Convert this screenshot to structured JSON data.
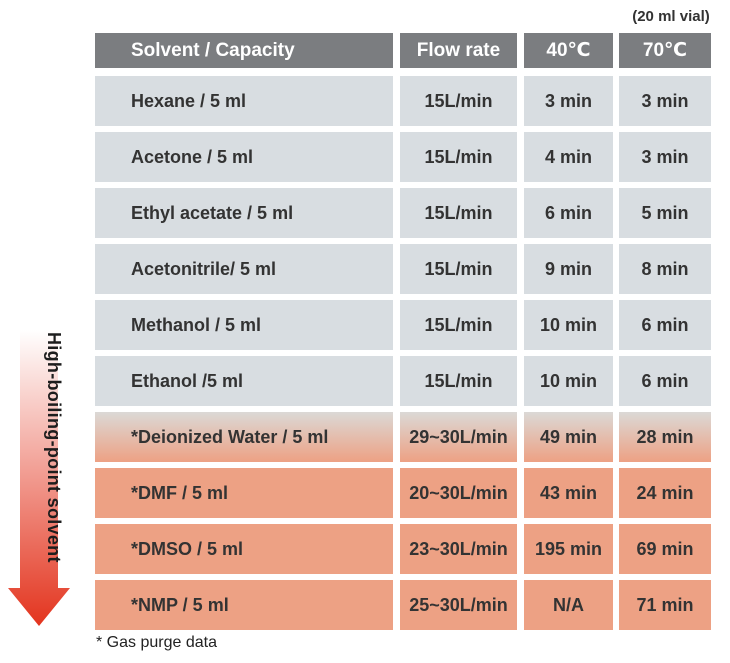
{
  "vial_note": "(20 ml vial)",
  "header": {
    "solvent": "Solvent / Capacity",
    "flow": "Flow rate",
    "t40": "40℃",
    "t70": "70℃"
  },
  "rows": [
    {
      "solvent": "Hexane /  5 ml",
      "flow": "15L/min",
      "t40": "3 min",
      "t70": "3 min",
      "tone": "grey"
    },
    {
      "solvent": "Acetone / 5 ml",
      "flow": "15L/min",
      "t40": "4 min",
      "t70": "3 min",
      "tone": "grey"
    },
    {
      "solvent": "Ethyl acetate / 5 ml",
      "flow": "15L/min",
      "t40": "6 min",
      "t70": "5 min",
      "tone": "grey"
    },
    {
      "solvent": "Acetonitrile/ 5 ml",
      "flow": "15L/min",
      "t40": "9 min",
      "t70": "8 min",
      "tone": "grey"
    },
    {
      "solvent": "Methanol / 5 ml",
      "flow": "15L/min",
      "t40": "10 min",
      "t70": "6 min",
      "tone": "grey"
    },
    {
      "solvent": "Ethanol  /5 ml",
      "flow": "15L/min",
      "t40": "10 min",
      "t70": "6 min",
      "tone": "grey"
    },
    {
      "solvent": "*Deionized Water / 5 ml",
      "flow": "29~30L/min",
      "t40": "49 min",
      "t70": "28 min",
      "tone": "fade"
    },
    {
      "solvent": "*DMF / 5 ml",
      "flow": "20~30L/min",
      "t40": "43 min",
      "t70": "24 min",
      "tone": "peach"
    },
    {
      "solvent": "*DMSO / 5 ml",
      "flow": "23~30L/min",
      "t40": "195 min",
      "t70": "69 min",
      "tone": "peach"
    },
    {
      "solvent": "*NMP / 5 ml",
      "flow": "25~30L/min",
      "t40": "N/A",
      "t70": "71 min",
      "tone": "peach"
    }
  ],
  "side_label": "High-boiling-point solvent",
  "side_arrow_icon": "down-arrow-icon",
  "colors": {
    "header_bg": "#7b7d80",
    "grey_row": "#d8dde1",
    "peach_row": "#eda184",
    "arrow_top": "#ffffff",
    "arrow_bottom": "#e3341e"
  },
  "footnote": "* Gas purge data"
}
